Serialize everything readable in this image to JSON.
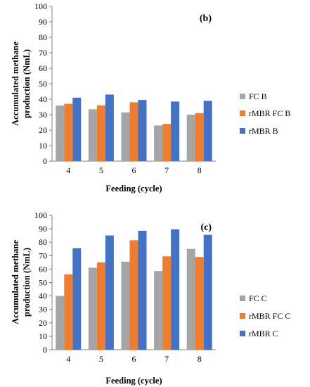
{
  "chart_data": [
    {
      "type": "bar",
      "panel_label": "(b)",
      "categories": [
        "4",
        "5",
        "6",
        "7",
        "8"
      ],
      "series": [
        {
          "name": "FC B",
          "color": "#a5a5a5",
          "values": [
            36,
            33.5,
            31.5,
            23,
            30
          ]
        },
        {
          "name": "rMBR FC B",
          "color": "#ed7d31",
          "values": [
            37,
            36,
            38,
            24,
            31
          ]
        },
        {
          "name": "rMBR B",
          "color": "#4472c4",
          "values": [
            41,
            43,
            39.5,
            38.5,
            39
          ]
        }
      ],
      "xlabel": "Feeding (cycle)",
      "ylabel": "Accumulated methane production (NmL)",
      "ylim": [
        0,
        100
      ],
      "yticks": [
        "0",
        "10",
        "20",
        "30",
        "40",
        "50",
        "60",
        "70",
        "80",
        "90",
        "100"
      ],
      "legend_position": "right",
      "grid": false
    },
    {
      "type": "bar",
      "panel_label": "(c)",
      "categories": [
        "4",
        "5",
        "6",
        "7",
        "8"
      ],
      "series": [
        {
          "name": "FC C",
          "color": "#a5a5a5",
          "values": [
            40,
            61,
            65.5,
            58.5,
            75
          ]
        },
        {
          "name": "rMBR FC C",
          "color": "#ed7d31",
          "values": [
            56,
            65,
            81.5,
            69.5,
            69
          ]
        },
        {
          "name": "rMBR C",
          "color": "#4472c4",
          "values": [
            75.5,
            85,
            88.5,
            89.5,
            85.5
          ]
        }
      ],
      "xlabel": "Feeding (cycle)",
      "ylabel": "Accumulated methane production (NmL)",
      "ylim": [
        0,
        100
      ],
      "yticks": [
        "0",
        "10",
        "20",
        "30",
        "40",
        "50",
        "60",
        "70",
        "80",
        "90",
        "100"
      ],
      "legend_position": "right",
      "grid": false
    }
  ]
}
